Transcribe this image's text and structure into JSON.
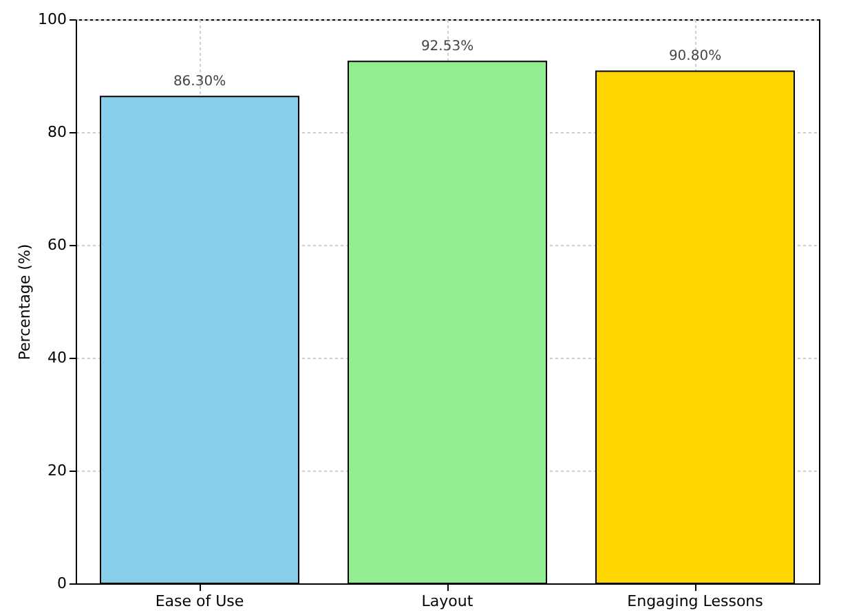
{
  "chart_data": {
    "type": "bar",
    "ylabel": "Percentage (%)",
    "categories": [
      "Ease of Use",
      "Layout",
      "Engaging Lessons"
    ],
    "values": [
      86.3,
      92.53,
      90.8
    ],
    "colors": [
      "#87ceeb",
      "#90ee90",
      "#ffd700"
    ],
    "value_labels": [
      "86.30%",
      "92.53%",
      "90.80%"
    ],
    "ylim": [
      0,
      100
    ],
    "yticks": [
      0,
      20,
      40,
      60,
      80,
      100
    ],
    "grid": true
  }
}
